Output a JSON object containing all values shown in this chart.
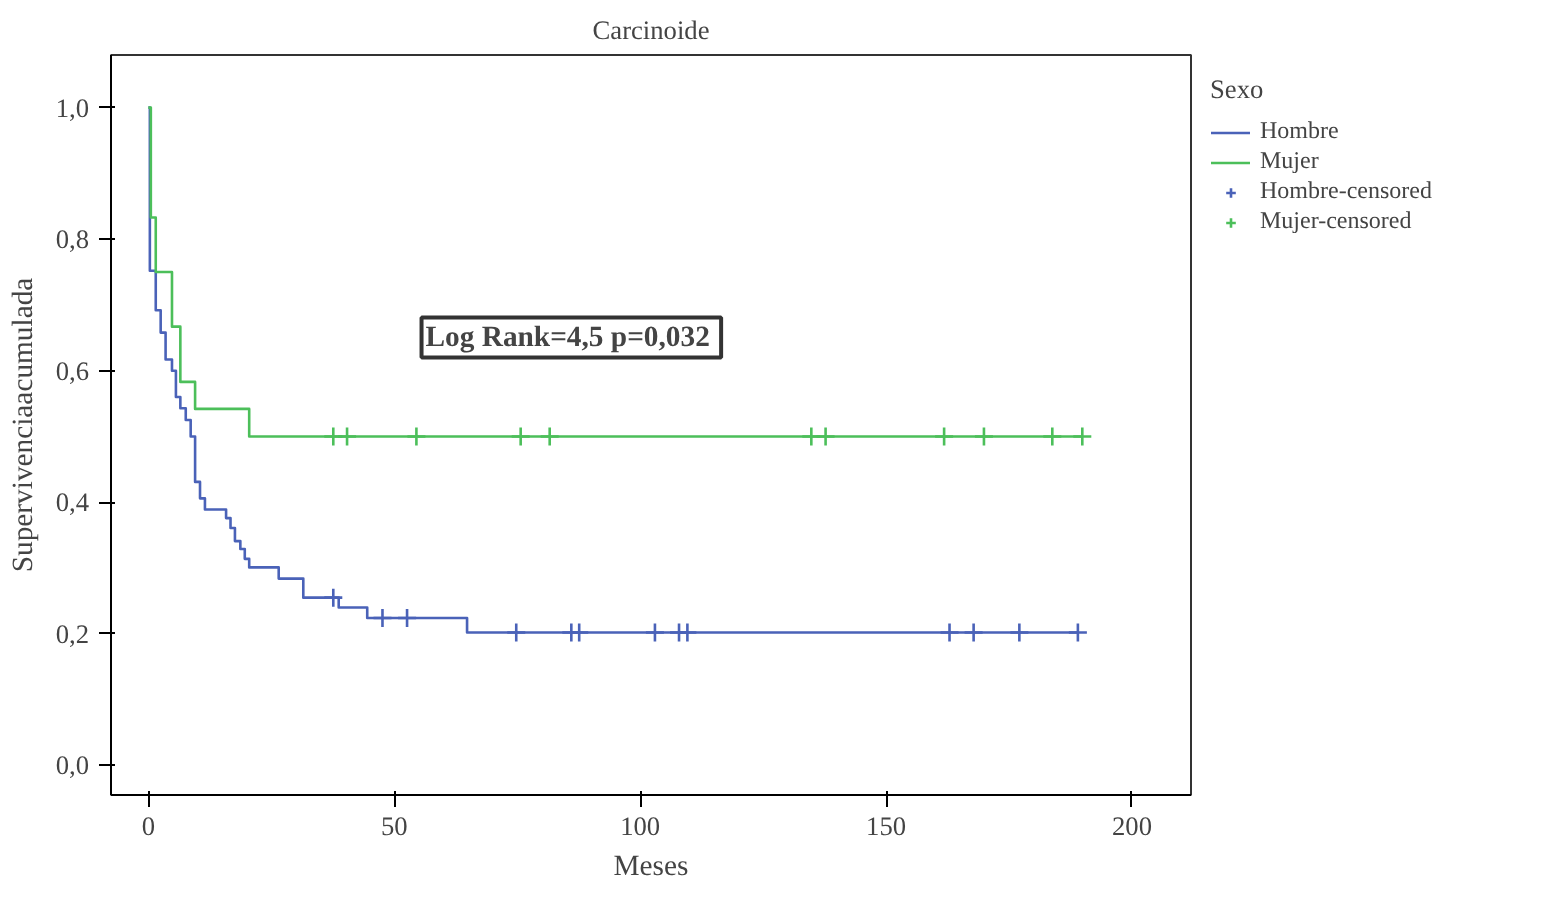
{
  "chart_data": {
    "type": "step",
    "title": "Carcinoide",
    "xlabel": "Meses",
    "ylabel": "Supervivenciaacumulada",
    "legend_title": "Sexo",
    "annotations": [
      "Log Rank=4,5  p=0,032"
    ],
    "xlim": [
      -7.6,
      212
    ],
    "ylim": [
      -0.045,
      1.08
    ],
    "xticks": [
      0,
      50,
      100,
      150,
      200
    ],
    "yticks": [
      {
        "value": 0,
        "label": "0,0"
      },
      {
        "value": 0.2,
        "label": "0,2"
      },
      {
        "value": 0.4,
        "label": "0,4"
      },
      {
        "value": 0.6,
        "label": "0,6"
      },
      {
        "value": 0.8,
        "label": "0,8"
      },
      {
        "value": 1.0,
        "label": "1,0"
      }
    ],
    "grid": false,
    "legend": "right",
    "series": [
      {
        "name": "Hombre",
        "color": "#4a62b8",
        "x": [
          0,
          0.3,
          1.5,
          2.5,
          3.5,
          4.8,
          5.6,
          6.5,
          7.6,
          8.6,
          9.5,
          10.5,
          11.5,
          15.8,
          16.7,
          17.6,
          18.7,
          19.6,
          20.5,
          26.5,
          31.5,
          38.7,
          44.5,
          64.8,
          189
        ],
        "values": [
          1.0,
          0.752,
          0.692,
          0.658,
          0.617,
          0.6,
          0.56,
          0.543,
          0.525,
          0.5,
          0.431,
          0.406,
          0.389,
          0.376,
          0.361,
          0.341,
          0.329,
          0.314,
          0.301,
          0.284,
          0.255,
          0.24,
          0.224,
          0.202,
          0.202
        ]
      },
      {
        "name": "Mujer",
        "color": "#4cbf5a",
        "x": [
          0,
          0.5,
          1.5,
          4.8,
          6.5,
          9.5,
          20.5,
          189.9
        ],
        "values": [
          1.0,
          0.833,
          0.75,
          0.667,
          0.583,
          0.542,
          0.5,
          0.5
        ]
      },
      {
        "name": "Hombre-censored",
        "color": "#4a62b8",
        "type": "scatter",
        "marker": "cross",
        "x": [
          37.6,
          47.6,
          52.6,
          74.8,
          86,
          87.6,
          103,
          107.9,
          109.6,
          162.9,
          167.8,
          177.1,
          189
        ],
        "values": [
          0.255,
          0.224,
          0.224,
          0.202,
          0.202,
          0.202,
          0.202,
          0.202,
          0.202,
          0.202,
          0.202,
          0.202,
          0.202
        ]
      },
      {
        "name": "Mujer-censored",
        "color": "#4cbf5a",
        "type": "scatter",
        "marker": "cross",
        "x": [
          37.6,
          40.4,
          54.5,
          75.7,
          81.6,
          134.8,
          137.7,
          161.8,
          169.9,
          183.8,
          189.9
        ],
        "values": [
          0.5,
          0.5,
          0.5,
          0.5,
          0.5,
          0.5,
          0.5,
          0.5,
          0.5,
          0.5,
          0.5
        ]
      }
    ]
  }
}
